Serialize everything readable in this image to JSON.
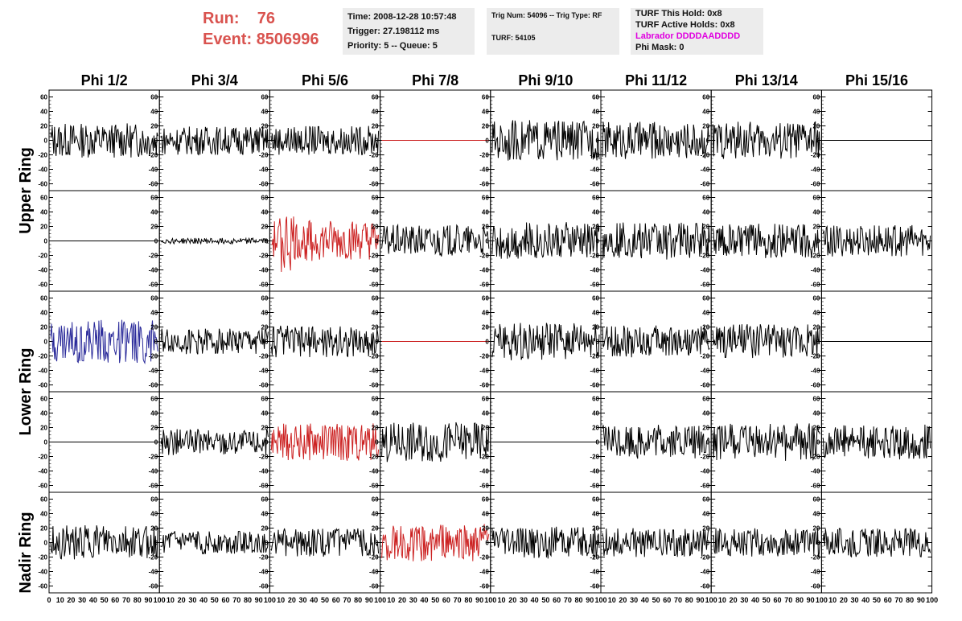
{
  "run_label": "Run:",
  "run_value": "76",
  "event_label": "Event:",
  "event_value": "8506996",
  "info1": [
    "Time: 2008-12-28 10:57:48",
    "Trigger: 27.198112 ms",
    "Priority: 5 -- Queue: 5"
  ],
  "info2": [
    "Trig Num: 54096 -- Trig Type: RF",
    "TURF: 54105"
  ],
  "info3": [
    "TURF This Hold: 0x8",
    "TURF Active Holds: 0x8",
    "Labrador DDDDAADDDD",
    "Phi Mask: 0"
  ],
  "colors": {
    "run": "#d9534f",
    "labrador": "#e000e0",
    "red": "#cc2222",
    "blue": "#2a2a9a",
    "black": "#000000"
  },
  "chart_data": {
    "type": "line",
    "columns": [
      "Phi 1/2",
      "Phi 3/4",
      "Phi 5/6",
      "Phi 7/8",
      "Phi 9/10",
      "Phi 11/12",
      "Phi 13/14",
      "Phi 15/16"
    ],
    "row_labels": [
      "Upper Ring",
      "Lower Ring",
      "Nadir Ring"
    ],
    "ylim": [
      -65,
      65
    ],
    "y_ticks": [
      "60",
      "40",
      "20",
      "0",
      "-20",
      "-40",
      "-60"
    ],
    "xlim": [
      0,
      100
    ],
    "x_ticks": [
      "0",
      "10",
      "20",
      "30",
      "40",
      "50",
      "60",
      "70",
      "80",
      "90",
      "100"
    ],
    "panels": [
      {
        "row": 0,
        "col": 0,
        "color": "black",
        "amp": 24
      },
      {
        "row": 0,
        "col": 1,
        "color": "black",
        "amp": 20
      },
      {
        "row": 0,
        "col": 2,
        "color": "black",
        "amp": 20
      },
      {
        "row": 0,
        "col": 3,
        "color": "red",
        "amp": 0
      },
      {
        "row": 0,
        "col": 4,
        "color": "black",
        "amp": 28
      },
      {
        "row": 0,
        "col": 5,
        "color": "black",
        "amp": 26
      },
      {
        "row": 0,
        "col": 6,
        "color": "black",
        "amp": 26
      },
      {
        "row": 0,
        "col": 7,
        "color": "black",
        "amp": 0
      },
      {
        "row": 1,
        "col": 0,
        "color": "black",
        "amp": 0
      },
      {
        "row": 1,
        "col": 1,
        "color": "black",
        "amp": 4
      },
      {
        "row": 1,
        "col": 2,
        "color": "red",
        "amp": 28
      },
      {
        "row": 1,
        "col": 3,
        "color": "black",
        "amp": 22
      },
      {
        "row": 1,
        "col": 4,
        "color": "black",
        "amp": 26
      },
      {
        "row": 1,
        "col": 5,
        "color": "black",
        "amp": 26
      },
      {
        "row": 1,
        "col": 6,
        "color": "black",
        "amp": 24
      },
      {
        "row": 1,
        "col": 7,
        "color": "black",
        "amp": 22
      },
      {
        "row": 2,
        "col": 0,
        "color": "blue",
        "amp": 30
      },
      {
        "row": 2,
        "col": 1,
        "color": "black",
        "amp": 18
      },
      {
        "row": 2,
        "col": 2,
        "color": "black",
        "amp": 22
      },
      {
        "row": 2,
        "col": 3,
        "color": "red",
        "amp": 0
      },
      {
        "row": 2,
        "col": 4,
        "color": "black",
        "amp": 26
      },
      {
        "row": 2,
        "col": 5,
        "color": "black",
        "amp": 22
      },
      {
        "row": 2,
        "col": 6,
        "color": "black",
        "amp": 24
      },
      {
        "row": 2,
        "col": 7,
        "color": "black",
        "amp": 0
      },
      {
        "row": 3,
        "col": 0,
        "color": "black",
        "amp": 0
      },
      {
        "row": 3,
        "col": 1,
        "color": "black",
        "amp": 18
      },
      {
        "row": 3,
        "col": 2,
        "color": "red",
        "amp": 26
      },
      {
        "row": 3,
        "col": 3,
        "color": "black",
        "amp": 28
      },
      {
        "row": 3,
        "col": 4,
        "color": "black",
        "amp": 0
      },
      {
        "row": 3,
        "col": 5,
        "color": "black",
        "amp": 24
      },
      {
        "row": 3,
        "col": 6,
        "color": "black",
        "amp": 26
      },
      {
        "row": 3,
        "col": 7,
        "color": "black",
        "amp": 24
      },
      {
        "row": 4,
        "col": 0,
        "color": "black",
        "amp": 24
      },
      {
        "row": 4,
        "col": 1,
        "color": "black",
        "amp": 16
      },
      {
        "row": 4,
        "col": 2,
        "color": "black",
        "amp": 20
      },
      {
        "row": 4,
        "col": 3,
        "color": "red",
        "amp": 26
      },
      {
        "row": 4,
        "col": 4,
        "color": "black",
        "amp": 22
      },
      {
        "row": 4,
        "col": 5,
        "color": "black",
        "amp": 20
      },
      {
        "row": 4,
        "col": 6,
        "color": "black",
        "amp": 20
      },
      {
        "row": 4,
        "col": 7,
        "color": "black",
        "amp": 20
      }
    ]
  }
}
